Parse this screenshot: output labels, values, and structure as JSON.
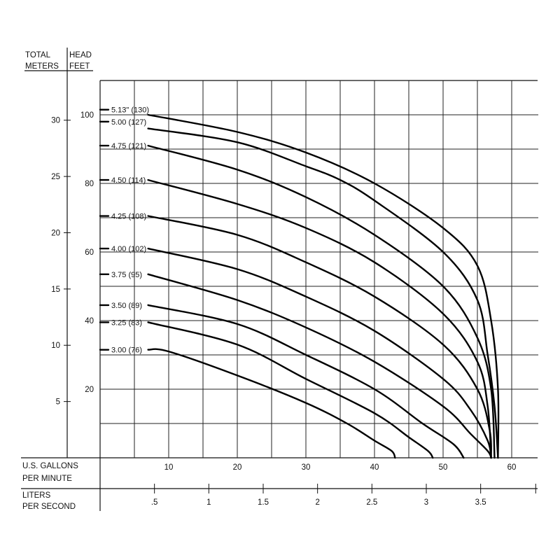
{
  "chart_data": {
    "type": "line",
    "headers": {
      "meters": [
        "TOTAL",
        "METERS"
      ],
      "feet": [
        "HEAD",
        "FEET"
      ],
      "gpm": [
        "U.S. GALLONS",
        "PER MINUTE"
      ],
      "lps": [
        "LITERS",
        "PER SECOND"
      ]
    },
    "x_gpm": {
      "range": [
        0,
        60
      ],
      "ticks": [
        10,
        20,
        30,
        40,
        50,
        60
      ]
    },
    "y_feet": {
      "range": [
        0,
        110
      ],
      "ticks": [
        20,
        40,
        60,
        80,
        100
      ]
    },
    "y_meters": {
      "ticks": [
        5,
        10,
        15,
        20,
        25,
        30
      ],
      "tick_labels": [
        "5",
        "10",
        "15",
        "20",
        "25",
        "30"
      ]
    },
    "x_lps": {
      "ticks": [
        0.5,
        1,
        1.5,
        2,
        2.5,
        3,
        3.5
      ],
      "tick_labels": [
        ".5",
        "1",
        "1.5",
        "2",
        "2.5",
        "3",
        "3.5"
      ]
    },
    "grid": true,
    "series": [
      {
        "name": "5.13\" (130)",
        "label_y": 101.5,
        "points": [
          [
            7,
            100
          ],
          [
            20,
            95
          ],
          [
            30,
            89
          ],
          [
            40,
            80
          ],
          [
            50,
            67
          ],
          [
            55,
            56
          ],
          [
            57,
            40
          ],
          [
            58,
            20
          ],
          [
            58,
            0
          ]
        ]
      },
      {
        "name": "5.00 (127)",
        "label_y": 98,
        "points": [
          [
            7,
            96
          ],
          [
            20,
            92
          ],
          [
            30,
            85
          ],
          [
            35,
            81
          ],
          [
            40,
            75
          ],
          [
            50,
            60
          ],
          [
            55,
            46
          ],
          [
            56.5,
            30
          ],
          [
            57.5,
            15
          ],
          [
            58,
            0
          ]
        ]
      },
      {
        "name": "4.75 (121)",
        "label_y": 91,
        "points": [
          [
            7,
            91
          ],
          [
            20,
            84
          ],
          [
            30,
            76
          ],
          [
            40,
            65
          ],
          [
            50,
            50
          ],
          [
            55,
            35
          ],
          [
            57,
            20
          ],
          [
            57.5,
            0
          ]
        ]
      },
      {
        "name": "4.50 (114)",
        "label_y": 81,
        "points": [
          [
            7,
            81
          ],
          [
            20,
            74
          ],
          [
            30,
            67
          ],
          [
            40,
            57
          ],
          [
            50,
            42
          ],
          [
            55,
            28
          ],
          [
            56.5,
            15
          ],
          [
            57,
            0
          ]
        ]
      },
      {
        "name": "4.25 (108)",
        "label_y": 70.5,
        "points": [
          [
            7,
            70.5
          ],
          [
            20,
            65
          ],
          [
            30,
            57
          ],
          [
            40,
            47
          ],
          [
            50,
            33
          ],
          [
            55,
            20
          ],
          [
            56.8,
            8
          ],
          [
            57,
            0
          ]
        ]
      },
      {
        "name": "4.00 (102)",
        "label_y": 61,
        "points": [
          [
            7,
            61
          ],
          [
            20,
            55
          ],
          [
            30,
            47
          ],
          [
            40,
            37
          ],
          [
            50,
            23
          ],
          [
            54,
            14
          ],
          [
            56.5,
            5
          ],
          [
            57,
            0
          ]
        ]
      },
      {
        "name": "3.75 (95)",
        "label_y": 53.5,
        "points": [
          [
            7,
            53.5
          ],
          [
            20,
            46
          ],
          [
            30,
            38
          ],
          [
            40,
            28
          ],
          [
            50,
            15
          ],
          [
            54,
            7
          ],
          [
            56.5,
            2
          ],
          [
            57,
            0
          ]
        ]
      },
      {
        "name": "3.50 (89)",
        "label_y": 44.5,
        "points": [
          [
            7,
            44.5
          ],
          [
            20,
            39
          ],
          [
            30,
            30
          ],
          [
            40,
            20
          ],
          [
            47,
            10
          ],
          [
            51.5,
            4
          ],
          [
            53,
            0
          ]
        ]
      },
      {
        "name": "3.25 (83)",
        "label_y": 39.5,
        "points": [
          [
            7,
            39.5
          ],
          [
            20,
            33
          ],
          [
            30,
            23
          ],
          [
            40,
            13
          ],
          [
            45,
            6
          ],
          [
            47.8,
            2
          ],
          [
            48.5,
            0
          ]
        ]
      },
      {
        "name": "3.00 (76)",
        "label_y": 31.5,
        "points": [
          [
            7,
            31.5
          ],
          [
            10,
            31
          ],
          [
            20,
            24
          ],
          [
            30,
            16
          ],
          [
            36,
            10
          ],
          [
            40,
            5
          ],
          [
            42.5,
            2
          ],
          [
            43,
            0
          ]
        ]
      }
    ]
  }
}
